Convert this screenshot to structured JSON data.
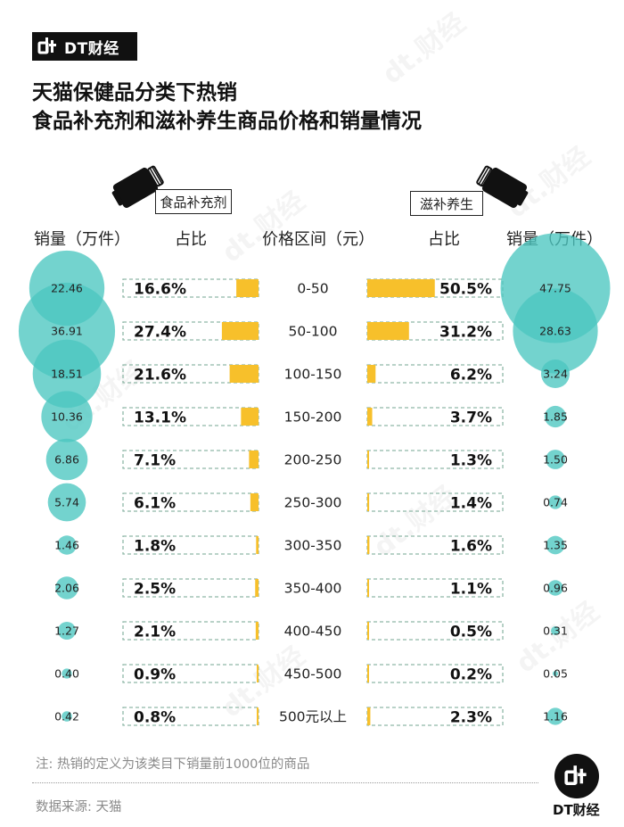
{
  "brand": {
    "name": "DT财经"
  },
  "title": {
    "line1": "天猫保健品分类下热销",
    "line2": "食品补充剂和滋补养生商品价格和销量情况"
  },
  "chart_data": {
    "type": "table",
    "left_category": "食品补充剂",
    "right_category": "滋补养生",
    "headers": {
      "left_sales": "销量（万件）",
      "left_share": "占比",
      "price": "价格区间（元）",
      "right_share": "占比",
      "right_sales": "销量（万件）"
    },
    "price_ranges": [
      "0-50",
      "50-100",
      "100-150",
      "150-200",
      "200-250",
      "250-300",
      "300-350",
      "350-400",
      "400-450",
      "450-500",
      "500元以上"
    ],
    "left_sales": [
      22.46,
      36.91,
      18.51,
      10.36,
      6.86,
      5.74,
      1.46,
      2.06,
      1.27,
      0.4,
      0.42
    ],
    "left_sales_labels": [
      "22.46",
      "36.91",
      "18.51",
      "10.36",
      "6.86",
      "5.74",
      "1.46",
      "2.06",
      "1.27",
      "0.40",
      "0.42"
    ],
    "left_share": [
      16.6,
      27.4,
      21.6,
      13.1,
      7.1,
      6.1,
      1.8,
      2.5,
      2.1,
      0.9,
      0.8
    ],
    "left_share_labels": [
      "16.6%",
      "27.4%",
      "21.6%",
      "13.1%",
      "7.1%",
      "6.1%",
      "1.8%",
      "2.5%",
      "2.1%",
      "0.9%",
      "0.8%"
    ],
    "right_share": [
      50.5,
      31.2,
      6.2,
      3.7,
      1.3,
      1.4,
      1.6,
      1.1,
      0.5,
      0.2,
      2.3
    ],
    "right_share_labels": [
      "50.5%",
      "31.2%",
      "6.2%",
      "3.7%",
      "1.3%",
      "1.4%",
      "1.6%",
      "1.1%",
      "0.5%",
      "0.2%",
      "2.3%"
    ],
    "right_sales": [
      47.75,
      28.63,
      3.24,
      1.85,
      1.5,
      0.74,
      1.35,
      0.96,
      0.31,
      0.05,
      1.16
    ],
    "right_sales_labels": [
      "47.75",
      "28.63",
      "3.24",
      "1.85",
      "1.50",
      "0.74",
      "1.35",
      "0.96",
      "0.31",
      "0.05",
      "1.16"
    ],
    "colors": {
      "bubble": "#4cc6c0",
      "bar": "#f7c02b",
      "frame": "#8fb8a8"
    }
  },
  "footer": {
    "note": "注: 热销的定义为该类目下销量前1000位的商品",
    "source": "数据来源: 天猫",
    "brand": "DT财经"
  }
}
